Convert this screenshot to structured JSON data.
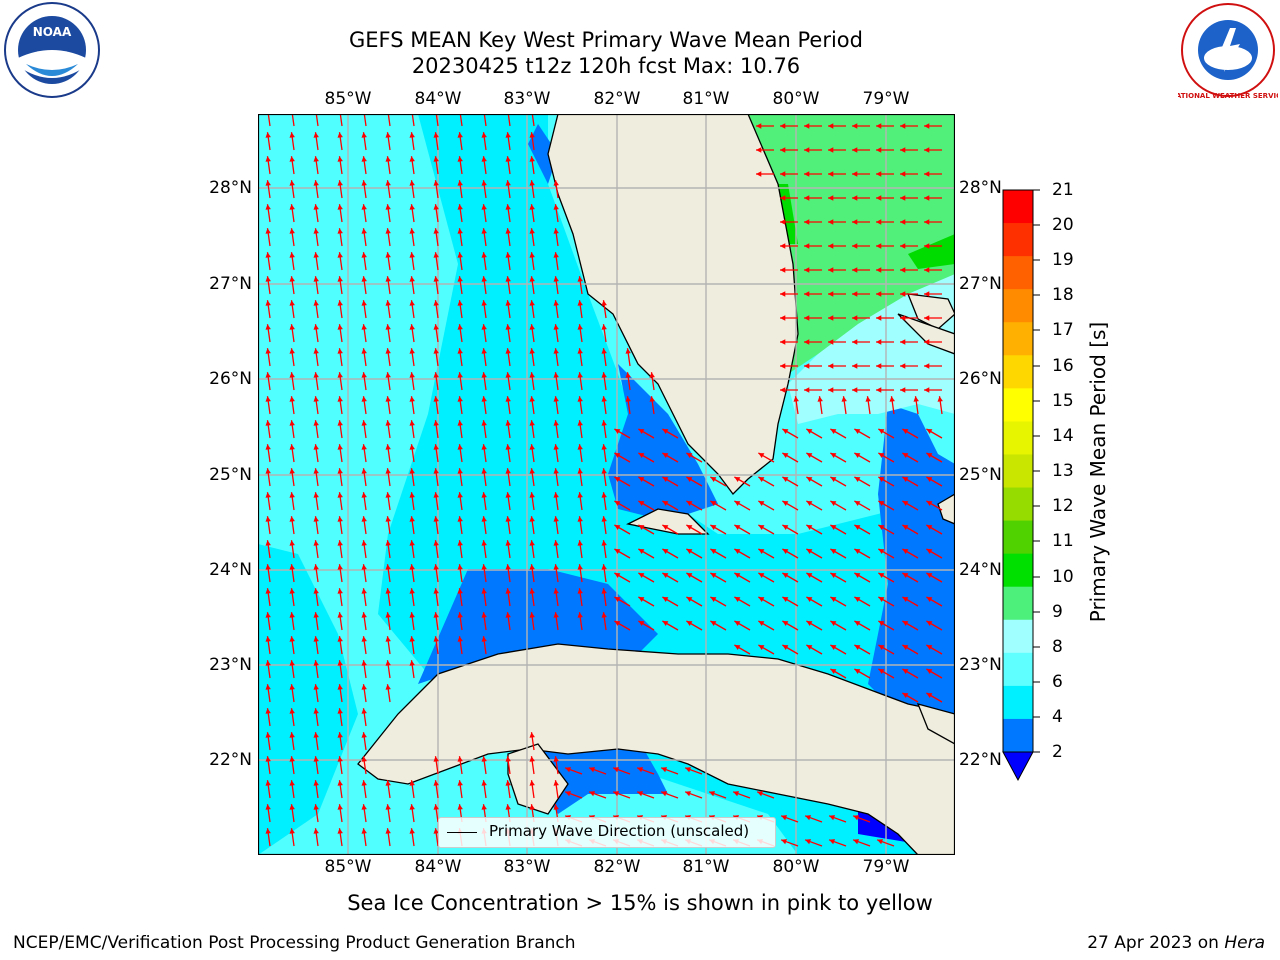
{
  "title_line1": "GEFS MEAN Key West Primary Wave Mean Period",
  "title_line2": "20230425 t12z 120h fcst   Max: 10.76",
  "lon_labels": [
    "85°W",
    "84°W",
    "83°W",
    "82°W",
    "81°W",
    "80°W",
    "79°W"
  ],
  "lat_labels": [
    "28°N",
    "27°N",
    "26°N",
    "25°N",
    "24°N",
    "23°N",
    "22°N"
  ],
  "colorbar": {
    "label": "Primary Wave Mean Period [s]",
    "ticks": [
      "21",
      "20",
      "19",
      "18",
      "17",
      "16",
      "15",
      "14",
      "13",
      "12",
      "11",
      "10",
      "9",
      "8",
      "6",
      "4",
      "2"
    ],
    "colors": [
      "#ff0000",
      "#ff3000",
      "#ff6000",
      "#ff8c00",
      "#ffb000",
      "#ffd700",
      "#ffff00",
      "#e8f500",
      "#c8e600",
      "#96dc00",
      "#50d200",
      "#00e000",
      "#4cf07a",
      "#a0ffff",
      "#60ffff",
      "#00f0ff",
      "#0078ff"
    ],
    "under_color": "#0000ff"
  },
  "legend_label": "Primary Wave Direction (unscaled)",
  "ice_note": "Sea Ice Concentration > 15% is shown in pink to yellow",
  "credit": "NCEP/EMC/Verification Post Processing Product Generation Branch",
  "date_prefix": "27 Apr 2023 on ",
  "date_host": "Hera",
  "logos": {
    "noaa_text": "NOAA",
    "nws_text": "NATIONAL WEATHER SERVICE"
  },
  "map_colors": {
    "land": "#efeddd",
    "coast": "#000000",
    "grid": "#b4b4b4",
    "arrow": "#ff0000",
    "p_2_4": "#0078ff",
    "p_4_6": "#00f0ff",
    "p_6_8": "#50ffff",
    "p_8_9": "#a0ffff",
    "p_9_10": "#50f07a",
    "p_10_11": "#00dc00",
    "p_lt_2": "#0000ff"
  }
}
